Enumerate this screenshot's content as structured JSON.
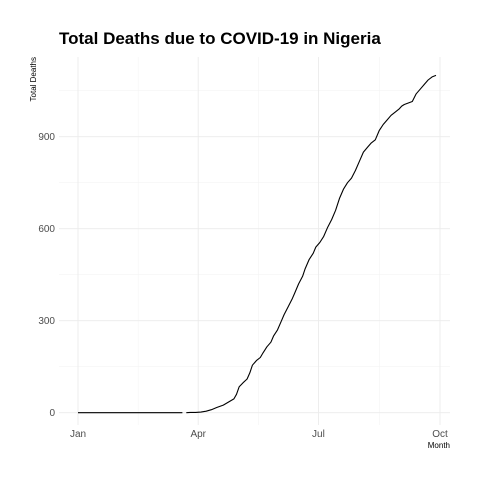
{
  "chart_data": {
    "type": "line",
    "title": "Total Deaths due to COVID-19 in Nigeria",
    "xlabel": "Month",
    "ylabel": "Total Deaths",
    "x_ticks": [
      "Jan",
      "Apr",
      "Jul",
      "Oct"
    ],
    "y_ticks": [
      0,
      300,
      600,
      900
    ],
    "ylim": [
      -40,
      1160
    ],
    "grid": true,
    "legend": "none",
    "series": [
      {
        "name": "Total Deaths",
        "segments": [
          {
            "x": [
              "2020-01-01",
              "2020-01-15",
              "2020-02-01",
              "2020-02-15",
              "2020-03-01",
              "2020-03-20"
            ],
            "y": [
              0,
              0,
              0,
              0,
              0,
              0
            ]
          },
          {
            "x": [
              "2020-03-23",
              "2020-03-26",
              "2020-03-30",
              "2020-04-03",
              "2020-04-07",
              "2020-04-11",
              "2020-04-15",
              "2020-04-20",
              "2020-04-24",
              "2020-04-28",
              "2020-04-30",
              "2020-05-02",
              "2020-05-05",
              "2020-05-08",
              "2020-05-10",
              "2020-05-12",
              "2020-05-15",
              "2020-05-18",
              "2020-05-20",
              "2020-05-23",
              "2020-05-26",
              "2020-05-28",
              "2020-05-31",
              "2020-06-03",
              "2020-06-05",
              "2020-06-08",
              "2020-06-11",
              "2020-06-13",
              "2020-06-16",
              "2020-06-19",
              "2020-06-21",
              "2020-06-24",
              "2020-06-27",
              "2020-06-29",
              "2020-07-02",
              "2020-07-05",
              "2020-07-08",
              "2020-07-11",
              "2020-07-14",
              "2020-07-17",
              "2020-07-20",
              "2020-07-23",
              "2020-07-26",
              "2020-07-29",
              "2020-08-01",
              "2020-08-04",
              "2020-08-07",
              "2020-08-10",
              "2020-08-13",
              "2020-08-16",
              "2020-08-19",
              "2020-08-22",
              "2020-08-25",
              "2020-08-28",
              "2020-08-31",
              "2020-09-02",
              "2020-09-04",
              "2020-09-07",
              "2020-09-10",
              "2020-09-13",
              "2020-09-16",
              "2020-09-19",
              "2020-09-22",
              "2020-09-25",
              "2020-09-28"
            ],
            "y": [
              0,
              1,
              1,
              2,
              5,
              10,
              17,
              25,
              35,
              45,
              60,
              85,
              98,
              110,
              130,
              155,
              170,
              180,
              195,
              215,
              230,
              250,
              270,
              300,
              320,
              345,
              370,
              390,
              420,
              445,
              470,
              500,
              520,
              540,
              555,
              575,
              605,
              630,
              660,
              700,
              730,
              750,
              765,
              790,
              820,
              850,
              865,
              880,
              890,
              920,
              940,
              955,
              970,
              980,
              990,
              1000,
              1005,
              1010,
              1015,
              1040,
              1055,
              1070,
              1085,
              1095,
              1100
            ]
          }
        ]
      }
    ]
  }
}
